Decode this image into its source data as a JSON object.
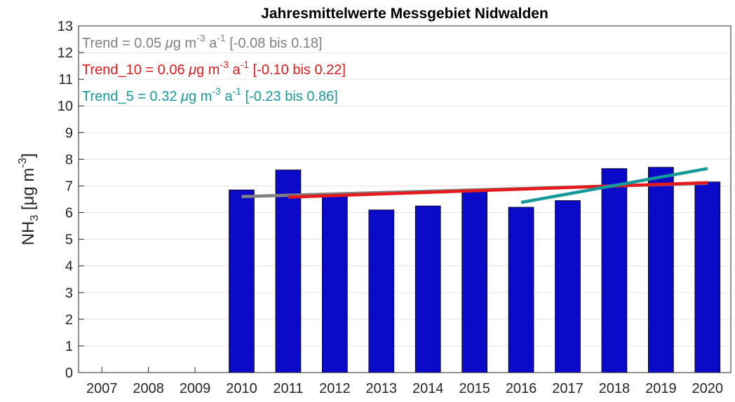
{
  "chart_data": {
    "type": "bar",
    "title": "Jahresmittelwerte Messgebiet Nidwalden",
    "y_label": [
      "NH",
      "3",
      " [μg m",
      "-3",
      "]"
    ],
    "categories": [
      "2007",
      "2008",
      "2009",
      "2010",
      "2011",
      "2012",
      "2013",
      "2014",
      "2015",
      "2016",
      "2017",
      "2018",
      "2019",
      "2020"
    ],
    "values": [
      null,
      null,
      null,
      6.85,
      7.6,
      6.6,
      6.1,
      6.25,
      6.8,
      6.2,
      6.45,
      7.65,
      7.7,
      7.15
    ],
    "color": "#0a0ac8",
    "ylim": [
      0,
      13
    ],
    "yticks": [
      0,
      1,
      2,
      3,
      4,
      5,
      6,
      7,
      8,
      9,
      10,
      11,
      12,
      13
    ],
    "grid": true,
    "trends": [
      {
        "type": "line",
        "color": "#808080",
        "x": [
          2010,
          2020
        ],
        "values": [
          6.6,
          7.1
        ],
        "label": [
          "Trend = 0.05 ",
          "μg m",
          "-3",
          " a",
          "-1",
          " [-0.08 bis 0.18]"
        ]
      },
      {
        "type": "line",
        "color": "#e41a1c",
        "x": [
          2011,
          2020
        ],
        "values": [
          6.58,
          7.12
        ],
        "label": [
          "Trend_10 = 0.06 ",
          "μg m",
          "-3",
          " a",
          "-1",
          " [-0.10 bis 0.22]"
        ]
      },
      {
        "type": "line",
        "color": "#16999a",
        "x": [
          2016,
          2020
        ],
        "values": [
          6.38,
          7.65
        ],
        "label": [
          "Trend_5 = 0.32 ",
          "μg m",
          "-3",
          " a",
          "-1",
          " [-0.23 bis 0.86]"
        ]
      }
    ]
  }
}
